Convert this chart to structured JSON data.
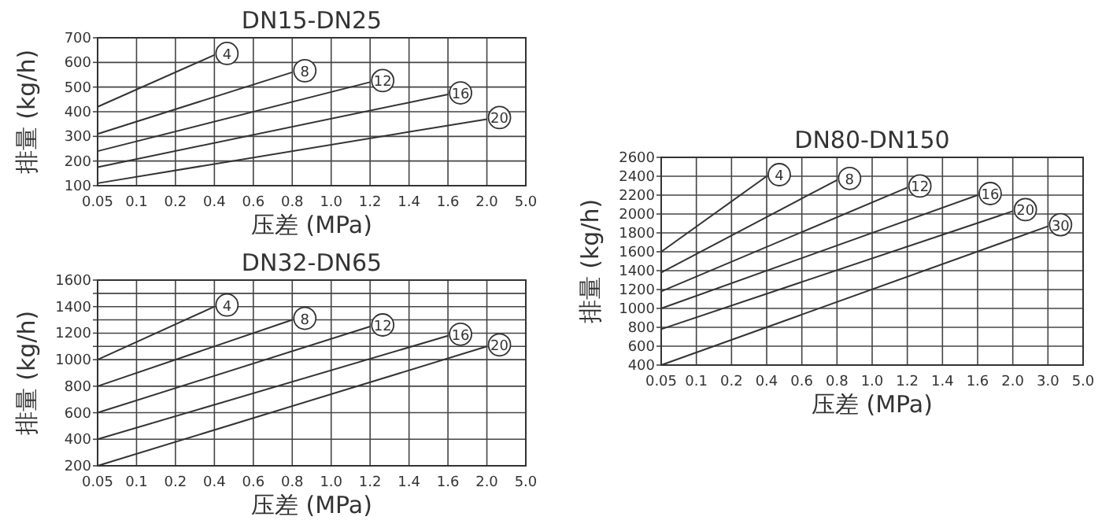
{
  "chart_data": [
    {
      "type": "line",
      "title": "DN15-DN25",
      "xlabel": "压差 (MPa)",
      "ylabel": "排量 (kg/h)",
      "categories": [
        "0.05",
        "0.1",
        "0.2",
        "0.4",
        "0.6",
        "0.8",
        "1.0",
        "1.2",
        "1.4",
        "1.6",
        "2.0",
        "5.0"
      ],
      "ylim": [
        100,
        700
      ],
      "yticks": [
        100,
        200,
        300,
        400,
        500,
        600,
        700
      ],
      "grid": true,
      "series": [
        {
          "name": "4",
          "color": "#333333",
          "x": [
            "0.05",
            "0.4"
          ],
          "values": [
            420,
            630
          ]
        },
        {
          "name": "8",
          "color": "#333333",
          "x": [
            "0.05",
            "0.8"
          ],
          "values": [
            310,
            560
          ]
        },
        {
          "name": "12",
          "color": "#333333",
          "x": [
            "0.05",
            "1.2"
          ],
          "values": [
            240,
            520
          ]
        },
        {
          "name": "16",
          "color": "#333333",
          "x": [
            "0.05",
            "1.6"
          ],
          "values": [
            175,
            470
          ]
        },
        {
          "name": "20",
          "color": "#333333",
          "x": [
            "0.05",
            "2.0"
          ],
          "values": [
            110,
            370
          ]
        }
      ]
    },
    {
      "type": "line",
      "title": "DN32-DN65",
      "xlabel": "压差 (MPa)",
      "ylabel": "排量 (kg/h)",
      "categories": [
        "0.05",
        "0.1",
        "0.2",
        "0.4",
        "0.6",
        "0.8",
        "1.0",
        "1.2",
        "1.4",
        "1.6",
        "2.0",
        "5.0"
      ],
      "ylim": [
        200,
        1600
      ],
      "yticks": [
        200,
        400,
        600,
        800,
        1000,
        {
          "value": 1100,
          "label": null
        },
        1200,
        {
          "value": 1300,
          "label": null
        },
        1400,
        {
          "value": 1500,
          "label": null
        },
        1600
      ],
      "grid": true,
      "series": [
        {
          "name": "4",
          "color": "#333333",
          "x": [
            "0.05",
            "0.4"
          ],
          "values": [
            1000,
            1400
          ]
        },
        {
          "name": "8",
          "color": "#333333",
          "x": [
            "0.05",
            "0.8"
          ],
          "values": [
            800,
            1300
          ]
        },
        {
          "name": "12",
          "color": "#333333",
          "x": [
            "0.05",
            "1.2"
          ],
          "values": [
            600,
            1250
          ]
        },
        {
          "name": "16",
          "color": "#333333",
          "x": [
            "0.05",
            "1.6"
          ],
          "values": [
            400,
            1180
          ]
        },
        {
          "name": "20",
          "color": "#333333",
          "x": [
            "0.05",
            "2.0"
          ],
          "values": [
            200,
            1100
          ]
        }
      ]
    },
    {
      "type": "line",
      "title": "DN80-DN150",
      "xlabel": "压差 (MPa)",
      "ylabel": "排量 (kg/h)",
      "categories": [
        "0.05",
        "0.1",
        "0.2",
        "0.4",
        "0.6",
        "0.8",
        "1.0",
        "1.2",
        "1.4",
        "1.6",
        "2.0",
        "3.0",
        "5.0"
      ],
      "ylim": [
        400,
        2600
      ],
      "yticks": [
        400,
        600,
        800,
        1000,
        1200,
        1400,
        1600,
        1800,
        2000,
        2200,
        2400,
        2600
      ],
      "grid": true,
      "series": [
        {
          "name": "4",
          "color": "#333333",
          "x": [
            "0.05",
            "0.4"
          ],
          "values": [
            1600,
            2400
          ]
        },
        {
          "name": "8",
          "color": "#333333",
          "x": [
            "0.05",
            "0.8"
          ],
          "values": [
            1380,
            2360
          ]
        },
        {
          "name": "12",
          "color": "#333333",
          "x": [
            "0.05",
            "1.2"
          ],
          "values": [
            1180,
            2280
          ]
        },
        {
          "name": "16",
          "color": "#333333",
          "x": [
            "0.05",
            "1.6"
          ],
          "values": [
            1000,
            2200
          ]
        },
        {
          "name": "20",
          "color": "#333333",
          "x": [
            "0.05",
            "2.0"
          ],
          "values": [
            780,
            2030
          ]
        },
        {
          "name": "30",
          "color": "#333333",
          "x": [
            "0.05",
            "3.0"
          ],
          "values": [
            400,
            1870
          ]
        }
      ]
    }
  ]
}
